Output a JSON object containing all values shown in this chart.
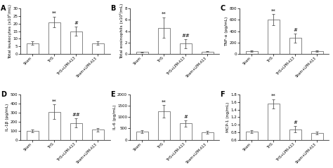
{
  "panels": [
    {
      "label": "A",
      "ylabel": "Total leukocytes (x10⁶/mL)",
      "ylim": [
        0,
        30
      ],
      "yticks": [
        0,
        5,
        10,
        15,
        20,
        25,
        30
      ],
      "values": [
        7,
        21,
        15,
        7
      ],
      "errors": [
        1.2,
        3.5,
        3.0,
        1.2
      ],
      "annotations": [
        "",
        "**",
        "#",
        ""
      ],
      "categories": [
        "Sham",
        "THS",
        "THS+LPM-A13",
        "Sham+LPM-A13"
      ]
    },
    {
      "label": "B",
      "ylabel": "Total eosinophils (x10⁶/mL)",
      "ylim": [
        0,
        8
      ],
      "yticks": [
        0,
        2,
        4,
        6,
        8
      ],
      "values": [
        0.3,
        4.6,
        1.8,
        0.4
      ],
      "errors": [
        0.1,
        1.8,
        0.8,
        0.1
      ],
      "annotations": [
        "",
        "**",
        "##",
        ""
      ],
      "categories": [
        "Sham",
        "THS",
        "THS+LPM-A13",
        "Sham+LPM-A13"
      ]
    },
    {
      "label": "C",
      "ylabel": "TNF-α (pg/mL)",
      "ylim": [
        0,
        800
      ],
      "yticks": [
        0,
        200,
        400,
        600,
        800
      ],
      "values": [
        50,
        600,
        280,
        50
      ],
      "errors": [
        15,
        100,
        80,
        15
      ],
      "annotations": [
        "",
        "**",
        "#",
        ""
      ],
      "categories": [
        "Sham",
        "THS",
        "THS+LPM-A13",
        "Sham+LPM-A13"
      ]
    },
    {
      "label": "D",
      "ylabel": "IL-1β (pg/mL)",
      "ylim": [
        0,
        500
      ],
      "yticks": [
        0,
        100,
        200,
        300,
        400,
        500
      ],
      "values": [
        100,
        310,
        185,
        110
      ],
      "errors": [
        15,
        80,
        50,
        20
      ],
      "annotations": [
        "",
        "**",
        "##",
        ""
      ],
      "categories": [
        "Sham",
        "THS",
        "THS+LPM-A13",
        "Sham+LPM-A13"
      ]
    },
    {
      "label": "E",
      "ylabel": "IL-6 (pg/mL)",
      "ylim": [
        0,
        2000
      ],
      "yticks": [
        0,
        500,
        1000,
        1500,
        2000
      ],
      "values": [
        350,
        1250,
        720,
        320
      ],
      "errors": [
        60,
        280,
        150,
        60
      ],
      "annotations": [
        "",
        "**",
        "#",
        ""
      ],
      "categories": [
        "Sham",
        "THS",
        "THS+LPM-A13",
        "Sham+LPM-A13"
      ]
    },
    {
      "label": "F",
      "ylabel": "MCP-1 (ng/mL)",
      "ylim": [
        0.6,
        1.8
      ],
      "yticks": [
        0.6,
        0.8,
        1.0,
        1.2,
        1.4,
        1.6,
        1.8
      ],
      "values": [
        0.82,
        1.55,
        0.88,
        0.78
      ],
      "errors": [
        0.04,
        0.12,
        0.08,
        0.04
      ],
      "annotations": [
        "",
        "**",
        "#",
        ""
      ],
      "categories": [
        "Sham",
        "THS",
        "THS+LPM-A13",
        "Sham+LPM-A13"
      ]
    }
  ],
  "bar_color": "#ffffff",
  "bar_edgecolor": "#555555",
  "bar_width": 0.55,
  "capsize": 1.5,
  "ecolor": "#555555",
  "ann_fontsize": 5,
  "ylabel_fontsize": 4.2,
  "tick_fontsize": 4.0,
  "xticklabel_fontsize": 3.5,
  "panel_label_fontsize": 7
}
